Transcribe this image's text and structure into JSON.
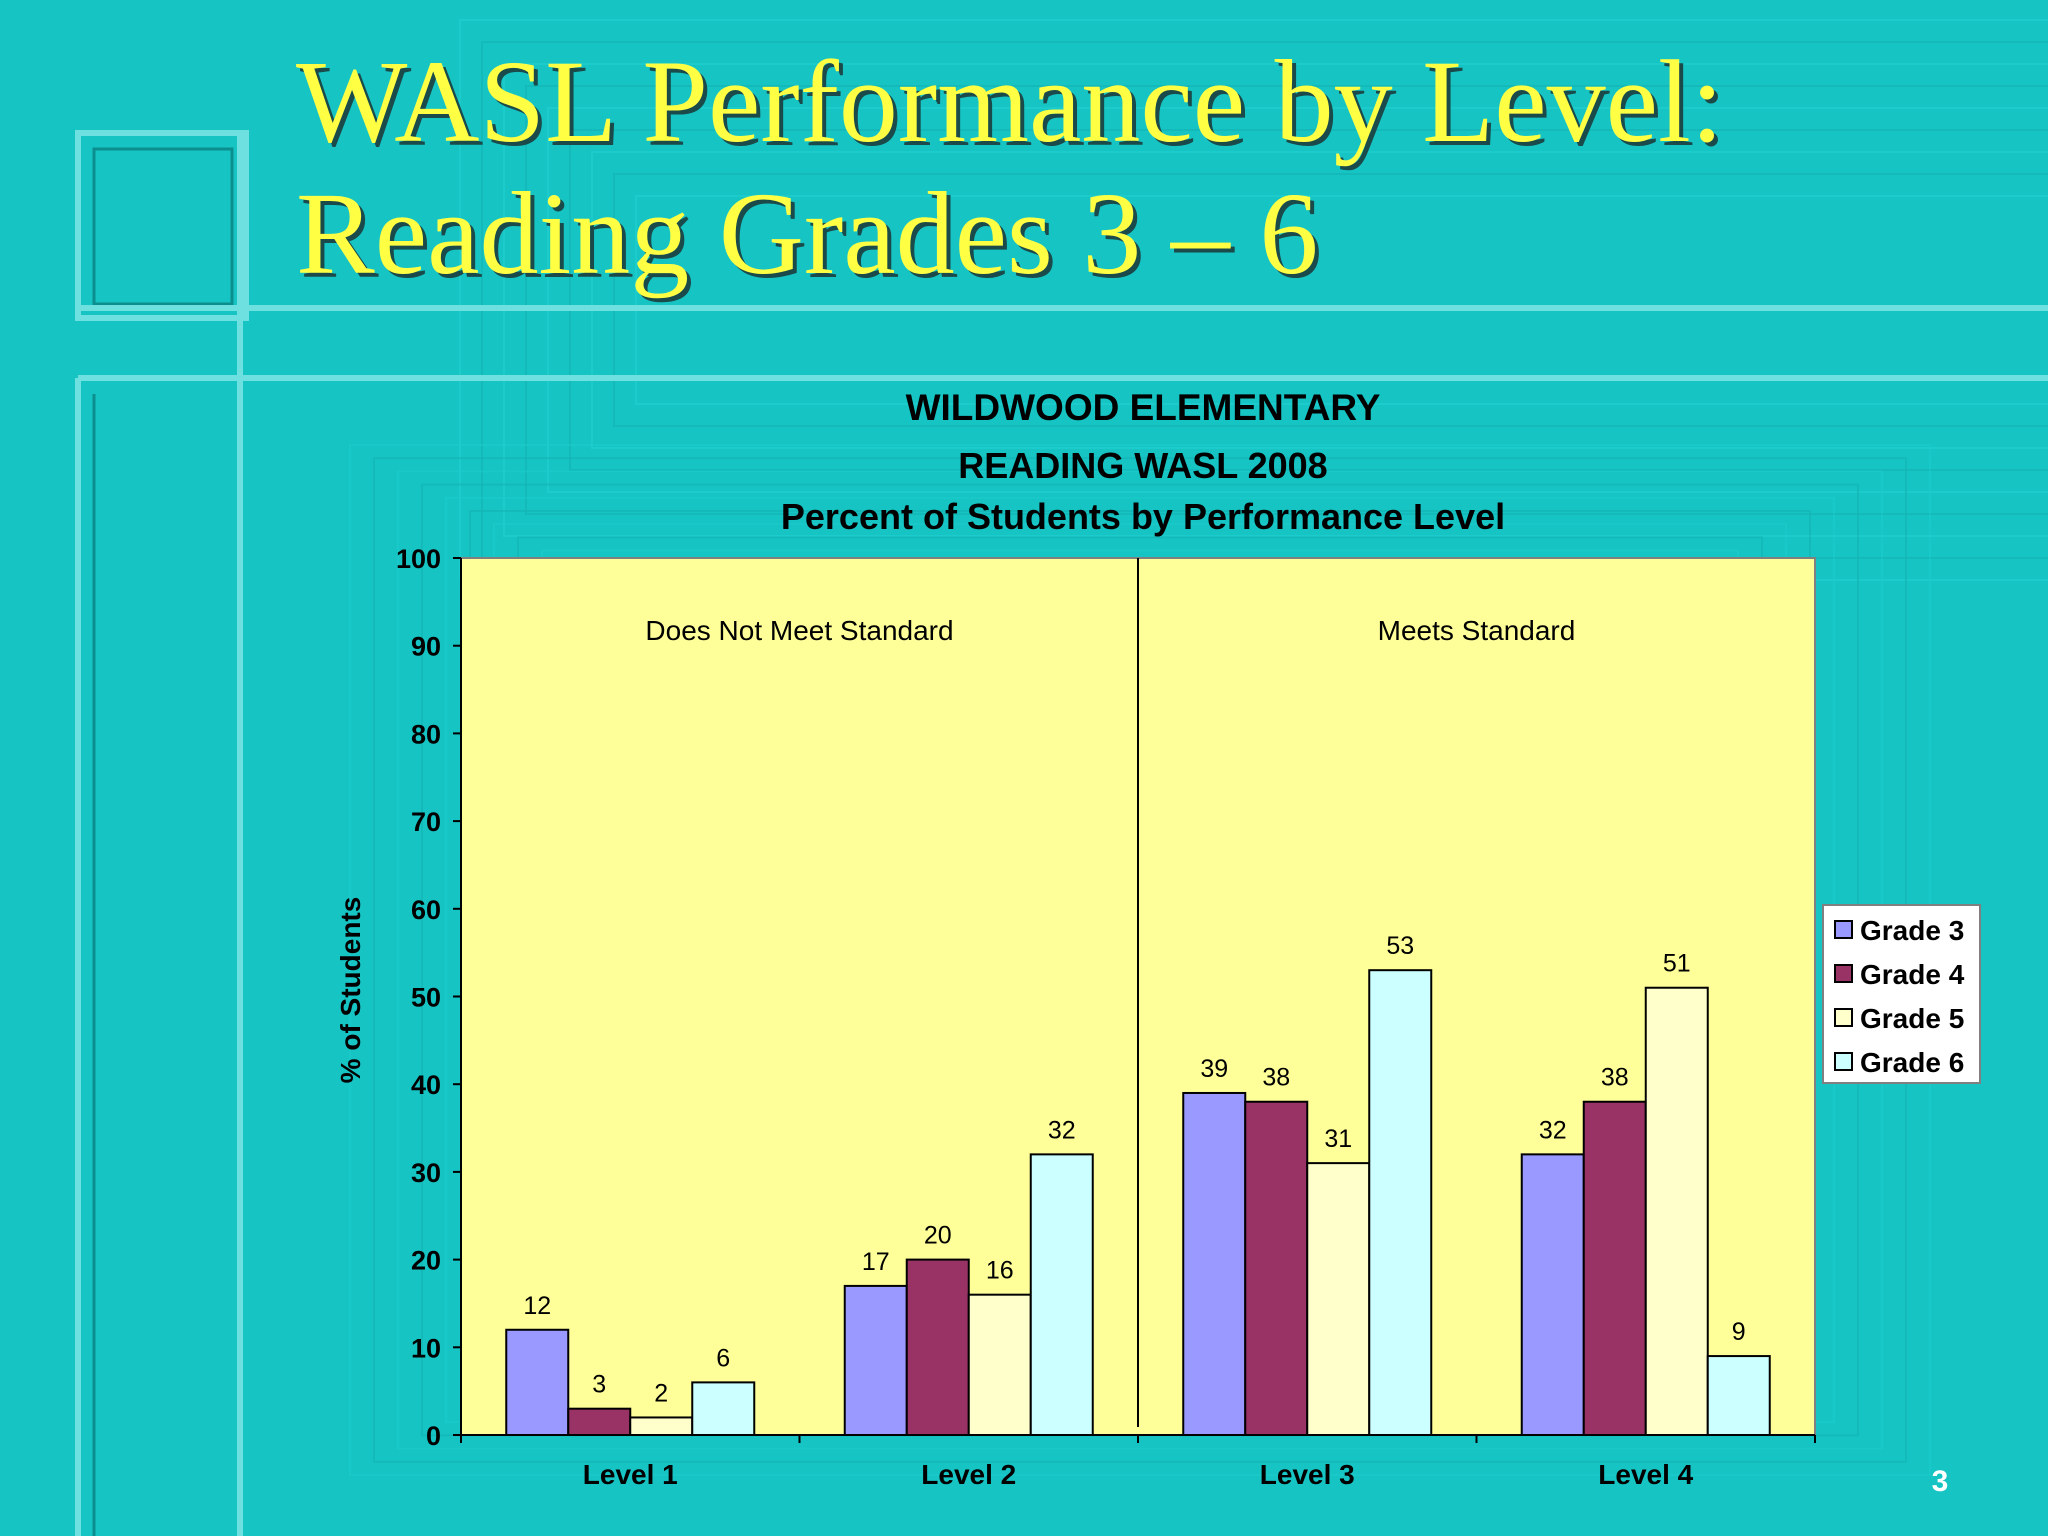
{
  "slide": {
    "title_line1": "WASL Performance by Level:",
    "title_line2": "Reading Grades 3 – 6",
    "page_number": "3"
  },
  "chart_data": {
    "type": "bar",
    "title": [
      "WILDWOOD ELEMENTARY",
      "READING WASL 2008",
      "Percent of Students by Performance Level"
    ],
    "categories": [
      "Level 1",
      "Level 2",
      "Level 3",
      "Level 4"
    ],
    "series": [
      {
        "name": "Grade 3",
        "values": [
          12,
          17,
          39,
          32
        ],
        "color": "#9999ff"
      },
      {
        "name": "Grade 4",
        "values": [
          3,
          20,
          38,
          38
        ],
        "color": "#993366"
      },
      {
        "name": "Grade 5",
        "values": [
          2,
          16,
          31,
          51
        ],
        "color": "#ffffcc"
      },
      {
        "name": "Grade 6",
        "values": [
          6,
          32,
          53,
          9
        ],
        "color": "#ccffff"
      }
    ],
    "ylabel": "% of Students",
    "ylim": [
      0,
      100
    ],
    "yticks": [
      0,
      10,
      20,
      30,
      40,
      50,
      60,
      70,
      80,
      90,
      100
    ],
    "annotations": [
      "Does Not Meet Standard",
      "Meets Standard"
    ],
    "divider_between_categories": [
      1,
      2
    ],
    "plot_background": "#ffff99",
    "legend_position": "right",
    "grid": false
  }
}
